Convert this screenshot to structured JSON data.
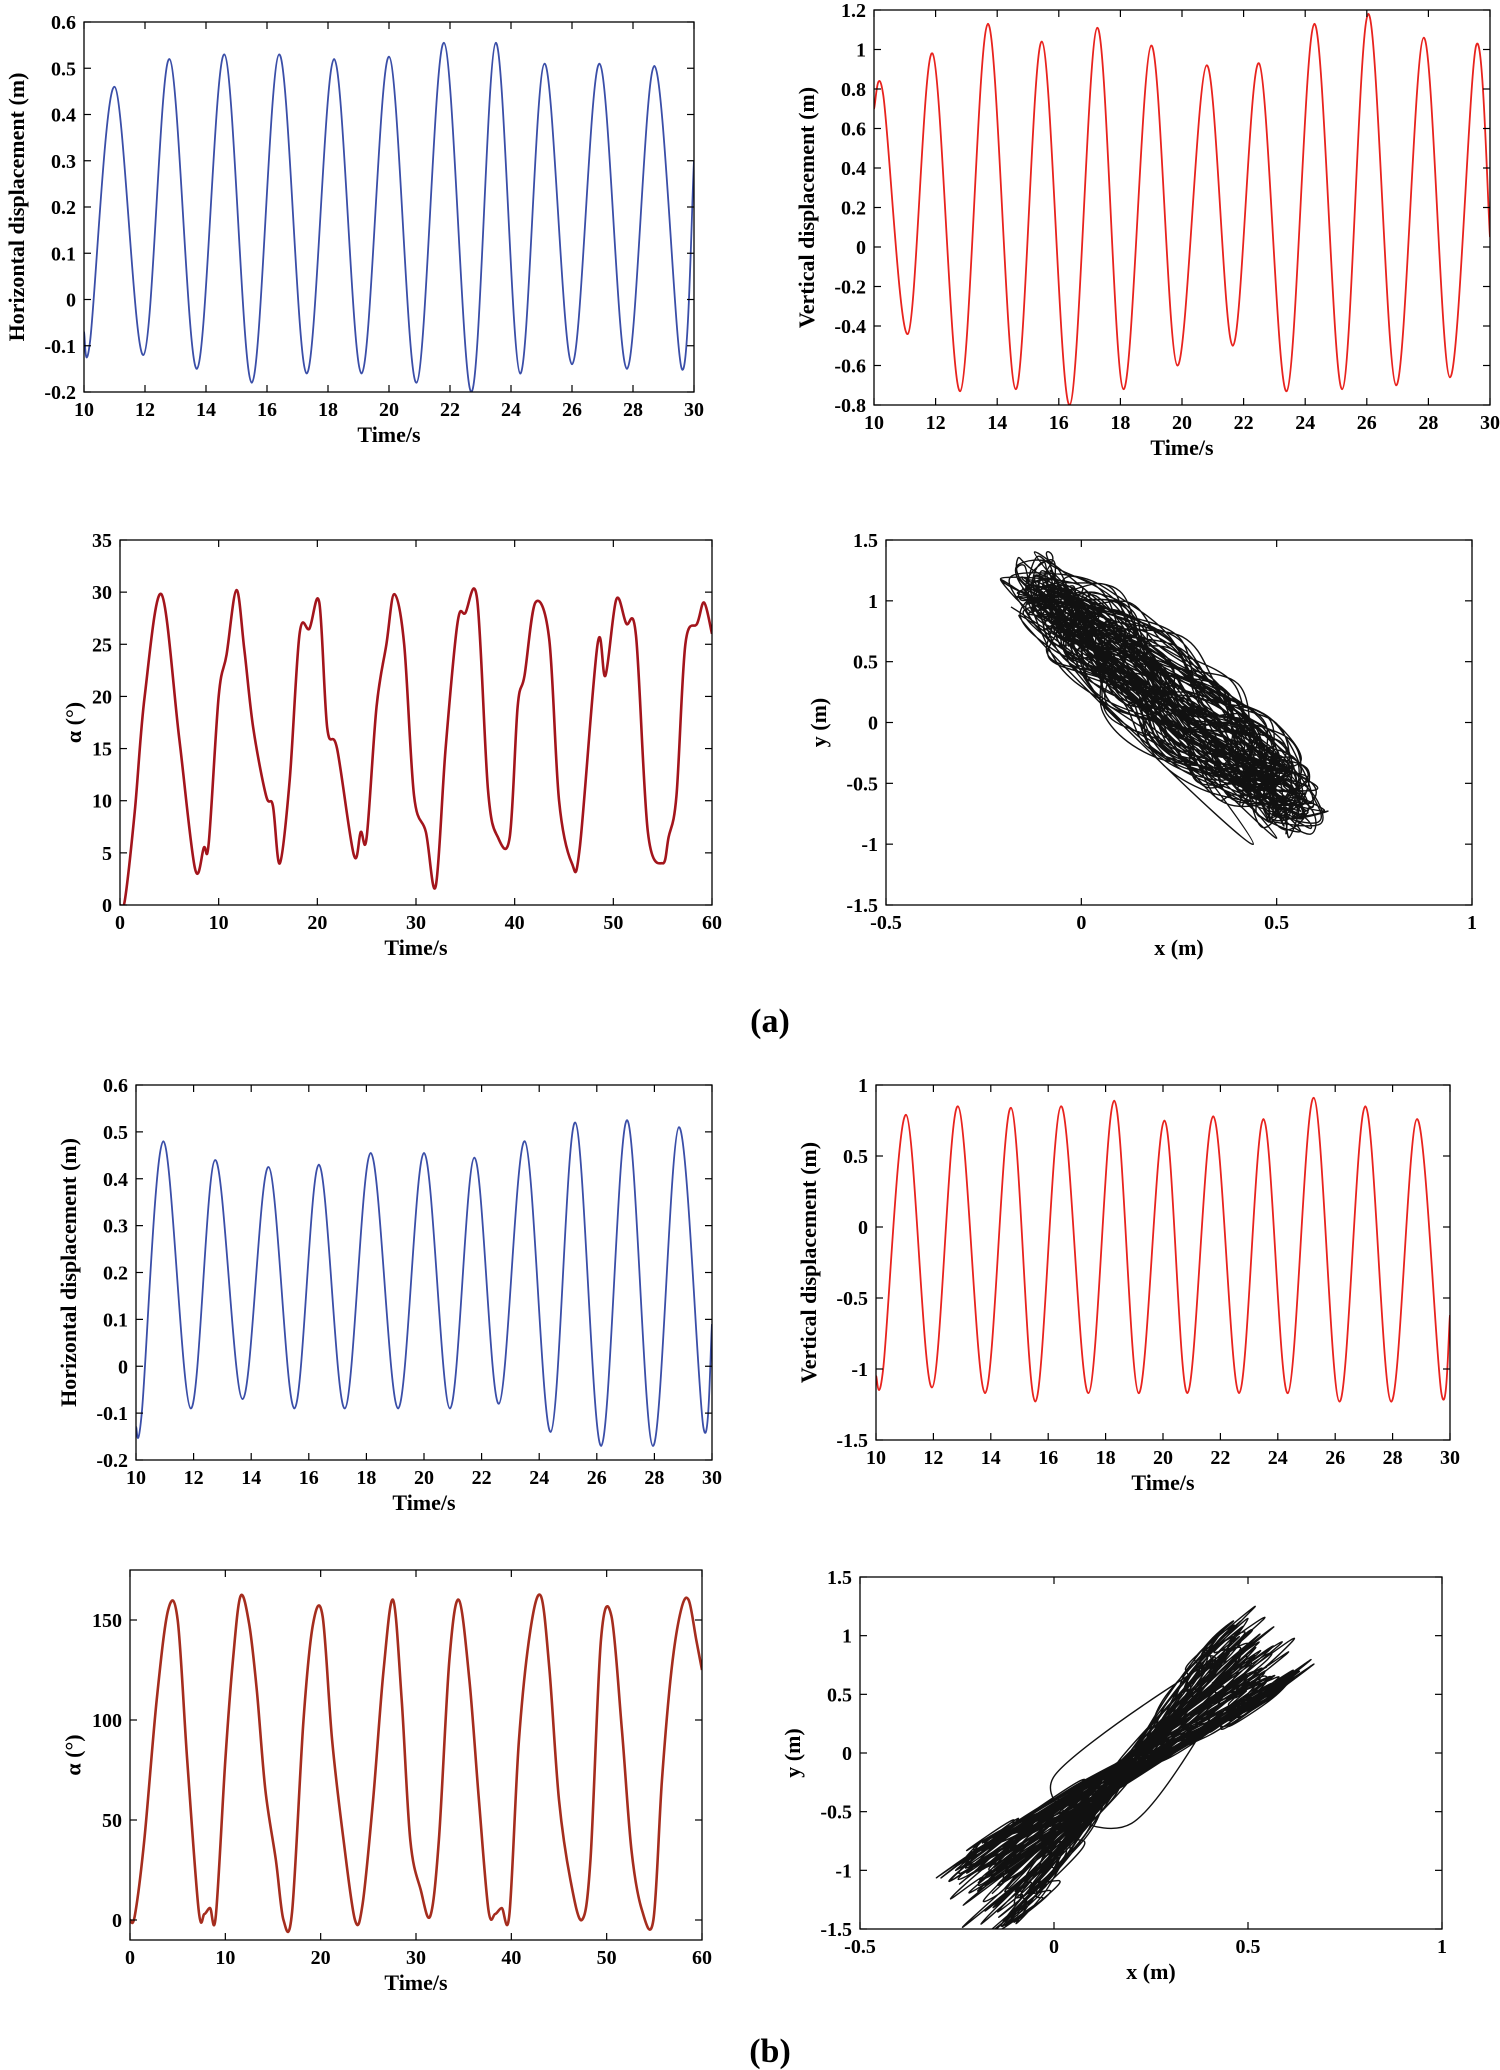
{
  "panel_labels": {
    "a": "(a)",
    "b": "(b)"
  },
  "chart_data": [
    {
      "id": "a-horizontal",
      "group": "a",
      "type": "line",
      "xlabel": "Time/s",
      "ylabel": "Horizontal displacement (m)",
      "xlim": [
        10,
        30
      ],
      "ylim": [
        -0.2,
        0.6
      ],
      "xticks": [
        10,
        12,
        14,
        16,
        18,
        20,
        22,
        24,
        26,
        28,
        30
      ],
      "yticks": [
        -0.2,
        -0.1,
        0,
        0.1,
        0.2,
        0.3,
        0.4,
        0.5,
        0.6
      ],
      "color": "#3a4ea8",
      "stroke": 1.8,
      "series": [
        {
          "name": "horizontal",
          "x": [
            10.0,
            10.2,
            11.0,
            11.95,
            12.8,
            13.7,
            14.6,
            15.5,
            16.4,
            17.3,
            18.2,
            19.1,
            20.0,
            20.9,
            21.8,
            22.7,
            23.5,
            24.3,
            25.1,
            26.0,
            26.9,
            27.8,
            28.7,
            29.6,
            30.0
          ],
          "y": [
            -0.07,
            -0.09,
            0.46,
            -0.12,
            0.52,
            -0.15,
            0.53,
            -0.18,
            0.53,
            -0.16,
            0.52,
            -0.16,
            0.525,
            -0.18,
            0.555,
            -0.2,
            0.555,
            -0.16,
            0.51,
            -0.14,
            0.51,
            -0.15,
            0.505,
            -0.15,
            0.3
          ]
        }
      ]
    },
    {
      "id": "a-vertical",
      "group": "a",
      "type": "line",
      "xlabel": "Time/s",
      "ylabel": "Vertical displacement (m)",
      "xlim": [
        10,
        30
      ],
      "ylim": [
        -0.8,
        1.2
      ],
      "xticks": [
        10,
        12,
        14,
        16,
        18,
        20,
        22,
        24,
        26,
        28,
        30
      ],
      "yticks": [
        -0.8,
        -0.6,
        -0.4,
        -0.2,
        0,
        0.2,
        0.4,
        0.6,
        0.8,
        1,
        1.2
      ],
      "color": "#e8231e",
      "stroke": 1.8,
      "series": [
        {
          "name": "vertical",
          "x": [
            10.0,
            10.3,
            11.1,
            11.9,
            12.8,
            13.7,
            14.6,
            15.45,
            16.35,
            17.25,
            18.1,
            19.0,
            19.85,
            20.8,
            21.65,
            22.5,
            23.4,
            24.3,
            25.2,
            26.05,
            26.95,
            27.85,
            28.7,
            29.55,
            30.0
          ],
          "y": [
            0.7,
            0.77,
            -0.44,
            0.98,
            -0.73,
            1.13,
            -0.72,
            1.04,
            -0.8,
            1.11,
            -0.72,
            1.02,
            -0.6,
            0.92,
            -0.5,
            0.93,
            -0.73,
            1.13,
            -0.72,
            1.18,
            -0.7,
            1.06,
            -0.66,
            1.02,
            0.05
          ]
        }
      ]
    },
    {
      "id": "a-alpha",
      "group": "a",
      "type": "line",
      "xlabel": "Time/s",
      "ylabel": "α (°)",
      "xlim": [
        0,
        60
      ],
      "ylim": [
        0,
        35
      ],
      "xticks": [
        0,
        10,
        20,
        30,
        40,
        50,
        60
      ],
      "yticks": [
        0,
        5,
        10,
        15,
        20,
        25,
        30,
        35
      ],
      "color": "#a3151c",
      "stroke": 2.6,
      "series": [
        {
          "name": "alpha",
          "x": [
            0.0,
            0.5,
            1.5,
            2.5,
            4.2,
            6.0,
            7.6,
            8.5,
            9.0,
            10.0,
            10.8,
            11.8,
            12.6,
            13.5,
            14.8,
            15.5,
            16.2,
            17.2,
            18.2,
            19.2,
            20.2,
            21.0,
            22.0,
            23.7,
            24.4,
            25.0,
            26.0,
            27.0,
            27.8,
            28.8,
            29.8,
            31.0,
            32.0,
            33.0,
            34.2,
            35.0,
            36.2,
            37.3,
            38.3,
            39.5,
            40.3,
            41.0,
            42.1,
            43.5,
            44.5,
            45.8,
            46.6,
            48.4,
            49.2,
            50.3,
            51.3,
            52.3,
            53.5,
            55.0,
            55.6,
            56.4,
            57.3,
            58.5,
            59.2,
            60.0
          ],
          "y": [
            0,
            0.5,
            9,
            20,
            29.8,
            16,
            3.5,
            5.5,
            6,
            20,
            24,
            30.2,
            24.5,
            17,
            10.5,
            9.5,
            4,
            12,
            26,
            26.5,
            29,
            17,
            15,
            4.8,
            7,
            6.5,
            19,
            25,
            29.8,
            25,
            10.5,
            7,
            1.8,
            15,
            27,
            28,
            29.3,
            11,
            6.5,
            6.5,
            19,
            22,
            29,
            25.5,
            10,
            4,
            5.5,
            25,
            22,
            29.3,
            27,
            25.8,
            7,
            4,
            6.5,
            10.5,
            25,
            27,
            29,
            26
          ]
        }
      ]
    },
    {
      "id": "a-xy",
      "group": "a",
      "type": "line",
      "xlabel": "x (m)",
      "ylabel": "y (m)",
      "xlim": [
        -0.5,
        1
      ],
      "ylim": [
        -1.5,
        1.5
      ],
      "xticks": [
        -0.5,
        0,
        0.5,
        1
      ],
      "yticks": [
        -1.5,
        -1,
        -0.5,
        0,
        0.5,
        1,
        1.5
      ],
      "color": "#111111",
      "stroke": 1.4,
      "orbit": {
        "center": [
          0.22,
          0.22
        ],
        "dir": [
          0.33,
          -0.9
        ],
        "spread": [
          0.055,
          0.2
        ],
        "loops": 60
      },
      "series": [
        {
          "name": "trajectory",
          "x": [
            -0.18,
            0.55,
            -0.12,
            0.5,
            -0.15,
            0.48,
            -0.08,
            0.44,
            -0.16,
            0.5
          ],
          "y": [
            0.95,
            -0.5,
            1.4,
            -0.95,
            1.1,
            -0.82,
            1.25,
            -1.0,
            0.88,
            -0.7
          ]
        }
      ]
    },
    {
      "id": "b-horizontal",
      "group": "b",
      "type": "line",
      "xlabel": "Time/s",
      "ylabel": "Horizontal displacement (m)",
      "xlim": [
        10,
        30
      ],
      "ylim": [
        -0.2,
        0.6
      ],
      "xticks": [
        10,
        12,
        14,
        16,
        18,
        20,
        22,
        24,
        26,
        28,
        30
      ],
      "yticks": [
        -0.2,
        -0.1,
        0,
        0.1,
        0.2,
        0.3,
        0.4,
        0.5,
        0.6
      ],
      "color": "#3a4ea8",
      "stroke": 1.8,
      "series": [
        {
          "name": "horizontal",
          "x": [
            10.0,
            10.2,
            10.95,
            11.9,
            12.75,
            13.7,
            14.6,
            15.5,
            16.35,
            17.25,
            18.15,
            19.1,
            20.0,
            20.9,
            21.75,
            22.6,
            23.5,
            24.4,
            25.25,
            26.15,
            27.05,
            27.95,
            28.85,
            29.7,
            30.0
          ],
          "y": [
            -0.13,
            -0.1,
            0.48,
            -0.09,
            0.44,
            -0.07,
            0.425,
            -0.09,
            0.43,
            -0.09,
            0.455,
            -0.09,
            0.455,
            -0.09,
            0.445,
            -0.08,
            0.48,
            -0.14,
            0.52,
            -0.17,
            0.525,
            -0.17,
            0.51,
            -0.13,
            0.09
          ]
        }
      ]
    },
    {
      "id": "b-vertical",
      "group": "b",
      "type": "line",
      "xlabel": "Time/s",
      "ylabel": "Vertical displacement (m)",
      "xlim": [
        10,
        30
      ],
      "ylim": [
        -1.5,
        1
      ],
      "xticks": [
        10,
        12,
        14,
        16,
        18,
        20,
        22,
        24,
        26,
        28,
        30
      ],
      "yticks": [
        -1.5,
        -1,
        -0.5,
        0,
        0.5,
        1
      ],
      "color": "#e8231e",
      "stroke": 1.8,
      "series": [
        {
          "name": "vertical",
          "x": [
            10.0,
            10.25,
            11.05,
            11.95,
            12.85,
            13.8,
            14.7,
            15.55,
            16.45,
            17.4,
            18.3,
            19.15,
            20.05,
            20.85,
            21.75,
            22.65,
            23.5,
            24.35,
            25.25,
            26.15,
            27.05,
            27.95,
            28.85,
            29.7,
            30.0
          ],
          "y": [
            -1.05,
            -1.0,
            0.79,
            -1.13,
            0.85,
            -1.17,
            0.84,
            -1.23,
            0.85,
            -1.17,
            0.89,
            -1.17,
            0.75,
            -1.17,
            0.78,
            -1.17,
            0.76,
            -1.17,
            0.91,
            -1.23,
            0.85,
            -1.23,
            0.76,
            -1.17,
            -0.62
          ]
        }
      ]
    },
    {
      "id": "b-alpha",
      "group": "b",
      "type": "line",
      "xlabel": "Time/s",
      "ylabel": "α (°)",
      "xlim": [
        0,
        60
      ],
      "ylim": [
        -10,
        175
      ],
      "xticks": [
        0,
        10,
        20,
        30,
        40,
        50,
        60
      ],
      "yticks": [
        0,
        50,
        100,
        150
      ],
      "color": "#a52d1e",
      "stroke": 2.6,
      "series": [
        {
          "name": "alpha",
          "x": [
            0.0,
            0.5,
            1.5,
            2.8,
            4.0,
            5.0,
            6.0,
            7.2,
            7.8,
            8.4,
            9.0,
            10.0,
            10.8,
            11.6,
            12.5,
            13.3,
            14.2,
            15.3,
            16.1,
            17.0,
            18.2,
            19.2,
            20.2,
            21.2,
            22.4,
            23.6,
            24.4,
            25.5,
            26.6,
            27.6,
            28.5,
            29.4,
            30.5,
            31.5,
            32.4,
            33.5,
            34.5,
            35.6,
            36.6,
            37.6,
            38.3,
            39.0,
            39.8,
            40.8,
            42.0,
            43.1,
            44.0,
            45.0,
            46.2,
            47.4,
            48.3,
            49.4,
            50.5,
            51.6,
            52.6,
            53.7,
            54.9,
            55.8,
            56.8,
            57.8,
            58.6,
            59.4,
            60.0
          ],
          "y": [
            0,
            2,
            40,
            110,
            155,
            150,
            80,
            5,
            3,
            6,
            2,
            80,
            130,
            162,
            148,
            115,
            65,
            30,
            0,
            4,
            100,
            148,
            152,
            90,
            40,
            0,
            8,
            60,
            125,
            160,
            110,
            40,
            15,
            2,
            40,
            130,
            160,
            120,
            60,
            5,
            3,
            6,
            3,
            90,
            145,
            162,
            125,
            60,
            20,
            0,
            30,
            140,
            152,
            95,
            35,
            5,
            0,
            70,
            125,
            155,
            160,
            140,
            125
          ]
        }
      ]
    },
    {
      "id": "b-xy",
      "group": "b",
      "type": "line",
      "xlabel": "x (m)",
      "ylabel": "y (m)",
      "xlim": [
        -0.5,
        1
      ],
      "ylim": [
        -1.5,
        1.5
      ],
      "xticks": [
        -0.5,
        0,
        0.5,
        1
      ],
      "yticks": [
        -1.5,
        -1,
        -0.5,
        0,
        0.5,
        1,
        1.5
      ],
      "color": "#111111",
      "stroke": 1.4,
      "orbit": {
        "center": [
          0.18,
          -0.16
        ],
        "dir": [
          0.36,
          1.05
        ],
        "spread": [
          0.07,
          0.28
        ],
        "loops": 55
      },
      "series": [
        {
          "name": "trajectory",
          "x": [
            -0.16,
            0.52,
            -0.1,
            0.45,
            -0.13,
            0.5,
            0.0,
            0.2
          ],
          "y": [
            -1.2,
            0.9,
            -1.18,
            0.85,
            -1.1,
            0.92,
            -0.2,
            -0.6
          ]
        }
      ]
    }
  ]
}
